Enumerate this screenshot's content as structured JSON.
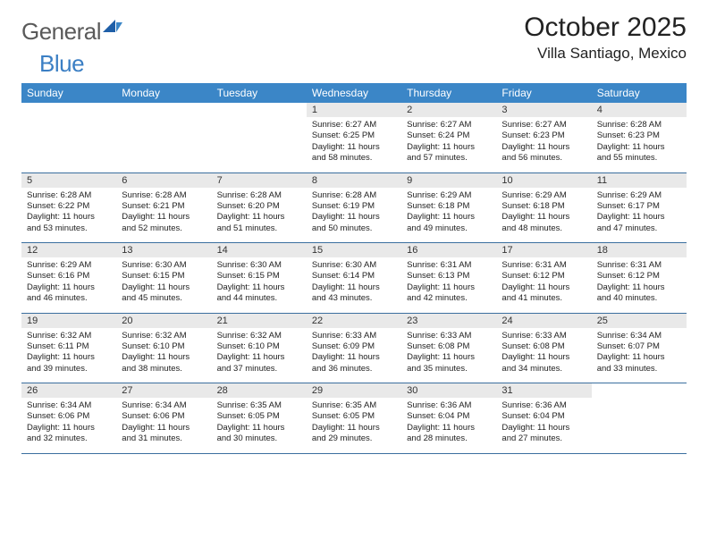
{
  "logo": {
    "word1": "General",
    "word2": "Blue"
  },
  "title": "October 2025",
  "location": "Villa Santiago, Mexico",
  "day_headers": [
    "Sunday",
    "Monday",
    "Tuesday",
    "Wednesday",
    "Thursday",
    "Friday",
    "Saturday"
  ],
  "colors": {
    "header_bg": "#3b86c7",
    "header_text": "#ffffff",
    "daynum_bg": "#e9e9e9",
    "rule": "#3b6f9f",
    "logo_gray": "#5a5a5a",
    "logo_blue": "#3b7fc4"
  },
  "weeks": [
    [
      {
        "n": "",
        "sr": "",
        "ss": "",
        "dl": ""
      },
      {
        "n": "",
        "sr": "",
        "ss": "",
        "dl": ""
      },
      {
        "n": "",
        "sr": "",
        "ss": "",
        "dl": ""
      },
      {
        "n": "1",
        "sr": "Sunrise: 6:27 AM",
        "ss": "Sunset: 6:25 PM",
        "dl": "Daylight: 11 hours and 58 minutes."
      },
      {
        "n": "2",
        "sr": "Sunrise: 6:27 AM",
        "ss": "Sunset: 6:24 PM",
        "dl": "Daylight: 11 hours and 57 minutes."
      },
      {
        "n": "3",
        "sr": "Sunrise: 6:27 AM",
        "ss": "Sunset: 6:23 PM",
        "dl": "Daylight: 11 hours and 56 minutes."
      },
      {
        "n": "4",
        "sr": "Sunrise: 6:28 AM",
        "ss": "Sunset: 6:23 PM",
        "dl": "Daylight: 11 hours and 55 minutes."
      }
    ],
    [
      {
        "n": "5",
        "sr": "Sunrise: 6:28 AM",
        "ss": "Sunset: 6:22 PM",
        "dl": "Daylight: 11 hours and 53 minutes."
      },
      {
        "n": "6",
        "sr": "Sunrise: 6:28 AM",
        "ss": "Sunset: 6:21 PM",
        "dl": "Daylight: 11 hours and 52 minutes."
      },
      {
        "n": "7",
        "sr": "Sunrise: 6:28 AM",
        "ss": "Sunset: 6:20 PM",
        "dl": "Daylight: 11 hours and 51 minutes."
      },
      {
        "n": "8",
        "sr": "Sunrise: 6:28 AM",
        "ss": "Sunset: 6:19 PM",
        "dl": "Daylight: 11 hours and 50 minutes."
      },
      {
        "n": "9",
        "sr": "Sunrise: 6:29 AM",
        "ss": "Sunset: 6:18 PM",
        "dl": "Daylight: 11 hours and 49 minutes."
      },
      {
        "n": "10",
        "sr": "Sunrise: 6:29 AM",
        "ss": "Sunset: 6:18 PM",
        "dl": "Daylight: 11 hours and 48 minutes."
      },
      {
        "n": "11",
        "sr": "Sunrise: 6:29 AM",
        "ss": "Sunset: 6:17 PM",
        "dl": "Daylight: 11 hours and 47 minutes."
      }
    ],
    [
      {
        "n": "12",
        "sr": "Sunrise: 6:29 AM",
        "ss": "Sunset: 6:16 PM",
        "dl": "Daylight: 11 hours and 46 minutes."
      },
      {
        "n": "13",
        "sr": "Sunrise: 6:30 AM",
        "ss": "Sunset: 6:15 PM",
        "dl": "Daylight: 11 hours and 45 minutes."
      },
      {
        "n": "14",
        "sr": "Sunrise: 6:30 AM",
        "ss": "Sunset: 6:15 PM",
        "dl": "Daylight: 11 hours and 44 minutes."
      },
      {
        "n": "15",
        "sr": "Sunrise: 6:30 AM",
        "ss": "Sunset: 6:14 PM",
        "dl": "Daylight: 11 hours and 43 minutes."
      },
      {
        "n": "16",
        "sr": "Sunrise: 6:31 AM",
        "ss": "Sunset: 6:13 PM",
        "dl": "Daylight: 11 hours and 42 minutes."
      },
      {
        "n": "17",
        "sr": "Sunrise: 6:31 AM",
        "ss": "Sunset: 6:12 PM",
        "dl": "Daylight: 11 hours and 41 minutes."
      },
      {
        "n": "18",
        "sr": "Sunrise: 6:31 AM",
        "ss": "Sunset: 6:12 PM",
        "dl": "Daylight: 11 hours and 40 minutes."
      }
    ],
    [
      {
        "n": "19",
        "sr": "Sunrise: 6:32 AM",
        "ss": "Sunset: 6:11 PM",
        "dl": "Daylight: 11 hours and 39 minutes."
      },
      {
        "n": "20",
        "sr": "Sunrise: 6:32 AM",
        "ss": "Sunset: 6:10 PM",
        "dl": "Daylight: 11 hours and 38 minutes."
      },
      {
        "n": "21",
        "sr": "Sunrise: 6:32 AM",
        "ss": "Sunset: 6:10 PM",
        "dl": "Daylight: 11 hours and 37 minutes."
      },
      {
        "n": "22",
        "sr": "Sunrise: 6:33 AM",
        "ss": "Sunset: 6:09 PM",
        "dl": "Daylight: 11 hours and 36 minutes."
      },
      {
        "n": "23",
        "sr": "Sunrise: 6:33 AM",
        "ss": "Sunset: 6:08 PM",
        "dl": "Daylight: 11 hours and 35 minutes."
      },
      {
        "n": "24",
        "sr": "Sunrise: 6:33 AM",
        "ss": "Sunset: 6:08 PM",
        "dl": "Daylight: 11 hours and 34 minutes."
      },
      {
        "n": "25",
        "sr": "Sunrise: 6:34 AM",
        "ss": "Sunset: 6:07 PM",
        "dl": "Daylight: 11 hours and 33 minutes."
      }
    ],
    [
      {
        "n": "26",
        "sr": "Sunrise: 6:34 AM",
        "ss": "Sunset: 6:06 PM",
        "dl": "Daylight: 11 hours and 32 minutes."
      },
      {
        "n": "27",
        "sr": "Sunrise: 6:34 AM",
        "ss": "Sunset: 6:06 PM",
        "dl": "Daylight: 11 hours and 31 minutes."
      },
      {
        "n": "28",
        "sr": "Sunrise: 6:35 AM",
        "ss": "Sunset: 6:05 PM",
        "dl": "Daylight: 11 hours and 30 minutes."
      },
      {
        "n": "29",
        "sr": "Sunrise: 6:35 AM",
        "ss": "Sunset: 6:05 PM",
        "dl": "Daylight: 11 hours and 29 minutes."
      },
      {
        "n": "30",
        "sr": "Sunrise: 6:36 AM",
        "ss": "Sunset: 6:04 PM",
        "dl": "Daylight: 11 hours and 28 minutes."
      },
      {
        "n": "31",
        "sr": "Sunrise: 6:36 AM",
        "ss": "Sunset: 6:04 PM",
        "dl": "Daylight: 11 hours and 27 minutes."
      },
      {
        "n": "",
        "sr": "",
        "ss": "",
        "dl": ""
      }
    ]
  ]
}
